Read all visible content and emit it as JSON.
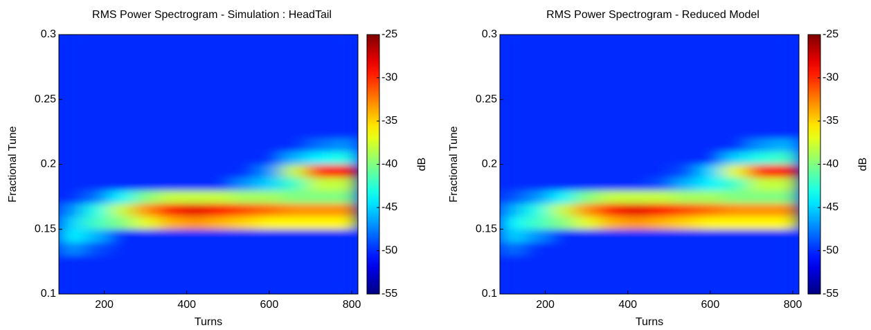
{
  "chart_data": [
    {
      "type": "heatmap",
      "title": "RMS Power Spectrogram - Simulation : HeadTail",
      "xlabel": "Turns",
      "ylabel": "Fractional Tune",
      "colorbar_label": "dB",
      "xlim": [
        90,
        815
      ],
      "ylim": [
        0.1,
        0.3
      ],
      "xticks": [
        200,
        400,
        600,
        800
      ],
      "yticks": [
        0.1,
        0.15,
        0.2,
        0.25,
        0.3
      ],
      "clim": [
        -55,
        -25
      ],
      "cticks": [
        -55,
        -50,
        -45,
        -40,
        -35,
        -30,
        -25
      ],
      "colormap": "jet",
      "xbins": [
        90,
        150,
        210,
        270,
        330,
        390,
        450,
        510,
        570,
        630,
        690,
        750,
        815
      ],
      "ybins": [
        0.1,
        0.11,
        0.12,
        0.13,
        0.14,
        0.15,
        0.16,
        0.17,
        0.18,
        0.19,
        0.2,
        0.21,
        0.22,
        0.23,
        0.24,
        0.25,
        0.26,
        0.27,
        0.28,
        0.29,
        0.3
      ],
      "z": [
        [
          -50,
          -50,
          -50,
          -50,
          -50,
          -50,
          -50,
          -50,
          -50,
          -50,
          -50,
          -50
        ],
        [
          -50,
          -50,
          -50,
          -50,
          -50,
          -50,
          -50,
          -50,
          -50,
          -50,
          -50,
          -50
        ],
        [
          -50,
          -50,
          -50,
          -50,
          -50,
          -50,
          -50,
          -50,
          -50,
          -50,
          -50,
          -50
        ],
        [
          -47,
          -49,
          -50,
          -50,
          -50,
          -50,
          -50,
          -50,
          -50,
          -50,
          -50,
          -50
        ],
        [
          -44,
          -46,
          -50,
          -50,
          -50,
          -50,
          -50,
          -50,
          -50,
          -50,
          -50,
          -50
        ],
        [
          -45,
          -42,
          -40,
          -37,
          -34,
          -33,
          -34,
          -35,
          -36,
          -36,
          -36,
          -36
        ],
        [
          -47,
          -43,
          -38,
          -33,
          -29,
          -28,
          -29,
          -31,
          -32,
          -33,
          -33,
          -33
        ],
        [
          -50,
          -48,
          -44,
          -40,
          -38,
          -38,
          -38,
          -39,
          -39,
          -40,
          -40,
          -40
        ],
        [
          -50,
          -50,
          -50,
          -50,
          -50,
          -50,
          -50,
          -47,
          -45,
          -42,
          -38,
          -38
        ],
        [
          -50,
          -50,
          -50,
          -50,
          -50,
          -50,
          -50,
          -50,
          -47,
          -38,
          -30,
          -29
        ],
        [
          -50,
          -50,
          -50,
          -50,
          -50,
          -50,
          -50,
          -50,
          -50,
          -46,
          -44,
          -43
        ],
        [
          -50,
          -50,
          -50,
          -50,
          -50,
          -50,
          -50,
          -50,
          -50,
          -50,
          -48,
          -47
        ],
        [
          -50,
          -50,
          -50,
          -50,
          -50,
          -50,
          -50,
          -50,
          -50,
          -50,
          -50,
          -50
        ],
        [
          -50,
          -50,
          -50,
          -50,
          -50,
          -50,
          -50,
          -50,
          -50,
          -50,
          -50,
          -50
        ],
        [
          -50,
          -50,
          -50,
          -50,
          -50,
          -50,
          -50,
          -50,
          -50,
          -50,
          -50,
          -50
        ],
        [
          -50,
          -50,
          -50,
          -50,
          -50,
          -50,
          -50,
          -50,
          -50,
          -50,
          -50,
          -50
        ],
        [
          -50,
          -50,
          -50,
          -50,
          -50,
          -50,
          -50,
          -50,
          -50,
          -50,
          -50,
          -50
        ],
        [
          -50,
          -50,
          -50,
          -50,
          -50,
          -50,
          -50,
          -50,
          -50,
          -50,
          -50,
          -50
        ],
        [
          -50,
          -50,
          -50,
          -50,
          -50,
          -50,
          -50,
          -50,
          -50,
          -50,
          -50,
          -50
        ],
        [
          -50,
          -50,
          -50,
          -50,
          -50,
          -50,
          -50,
          -50,
          -50,
          -50,
          -50,
          -50
        ]
      ]
    },
    {
      "type": "heatmap",
      "title": "RMS Power Spectrogram - Reduced Model",
      "xlabel": "Turns",
      "ylabel": "Fractional Tune",
      "colorbar_label": "dB",
      "xlim": [
        90,
        815
      ],
      "ylim": [
        0.1,
        0.3
      ],
      "xticks": [
        200,
        400,
        600,
        800
      ],
      "yticks": [
        0.1,
        0.15,
        0.2,
        0.25,
        0.3
      ],
      "clim": [
        -55,
        -25
      ],
      "cticks": [
        -55,
        -50,
        -45,
        -40,
        -35,
        -30,
        -25
      ],
      "colormap": "jet",
      "xbins": [
        90,
        150,
        210,
        270,
        330,
        390,
        450,
        510,
        570,
        630,
        690,
        750,
        815
      ],
      "ybins": [
        0.1,
        0.11,
        0.12,
        0.13,
        0.14,
        0.15,
        0.16,
        0.17,
        0.18,
        0.19,
        0.2,
        0.21,
        0.22,
        0.23,
        0.24,
        0.25,
        0.26,
        0.27,
        0.28,
        0.29,
        0.3
      ],
      "z": [
        [
          -50,
          -50,
          -50,
          -50,
          -50,
          -50,
          -50,
          -50,
          -50,
          -50,
          -50,
          -50
        ],
        [
          -50,
          -50,
          -50,
          -50,
          -50,
          -50,
          -50,
          -50,
          -50,
          -50,
          -50,
          -50
        ],
        [
          -50,
          -50,
          -50,
          -50,
          -50,
          -50,
          -50,
          -50,
          -50,
          -50,
          -50,
          -50
        ],
        [
          -48,
          -50,
          -50,
          -50,
          -50,
          -50,
          -50,
          -50,
          -50,
          -50,
          -50,
          -50
        ],
        [
          -45,
          -47,
          -50,
          -50,
          -50,
          -50,
          -50,
          -50,
          -50,
          -50,
          -50,
          -50
        ],
        [
          -44,
          -42,
          -40,
          -37,
          -34,
          -33,
          -34,
          -35,
          -36,
          -36,
          -36,
          -36
        ],
        [
          -46,
          -43,
          -38,
          -33,
          -29,
          -28,
          -29,
          -31,
          -32,
          -33,
          -33,
          -33
        ],
        [
          -49,
          -47,
          -44,
          -40,
          -38,
          -38,
          -38,
          -39,
          -39,
          -40,
          -40,
          -40
        ],
        [
          -50,
          -50,
          -50,
          -50,
          -50,
          -50,
          -49,
          -46,
          -44,
          -42,
          -38,
          -38
        ],
        [
          -50,
          -50,
          -50,
          -50,
          -50,
          -50,
          -50,
          -49,
          -45,
          -37,
          -30,
          -29
        ],
        [
          -50,
          -50,
          -50,
          -50,
          -50,
          -50,
          -50,
          -50,
          -50,
          -45,
          -43,
          -42
        ],
        [
          -50,
          -50,
          -50,
          -50,
          -50,
          -50,
          -50,
          -50,
          -50,
          -50,
          -47,
          -46
        ],
        [
          -50,
          -50,
          -50,
          -50,
          -50,
          -50,
          -50,
          -50,
          -50,
          -50,
          -50,
          -50
        ],
        [
          -50,
          -50,
          -50,
          -50,
          -50,
          -50,
          -50,
          -50,
          -50,
          -50,
          -50,
          -50
        ],
        [
          -50,
          -50,
          -50,
          -50,
          -50,
          -50,
          -50,
          -50,
          -50,
          -50,
          -50,
          -50
        ],
        [
          -50,
          -50,
          -50,
          -50,
          -50,
          -50,
          -50,
          -50,
          -50,
          -50,
          -50,
          -50
        ],
        [
          -50,
          -50,
          -50,
          -50,
          -50,
          -50,
          -50,
          -50,
          -50,
          -50,
          -50,
          -50
        ],
        [
          -50,
          -50,
          -50,
          -50,
          -50,
          -50,
          -50,
          -50,
          -50,
          -50,
          -50,
          -50
        ],
        [
          -50,
          -50,
          -50,
          -50,
          -50,
          -50,
          -50,
          -50,
          -50,
          -50,
          -50,
          -50
        ],
        [
          -50,
          -50,
          -50,
          -50,
          -50,
          -50,
          -50,
          -50,
          -50,
          -50,
          -50,
          -50
        ]
      ]
    }
  ]
}
